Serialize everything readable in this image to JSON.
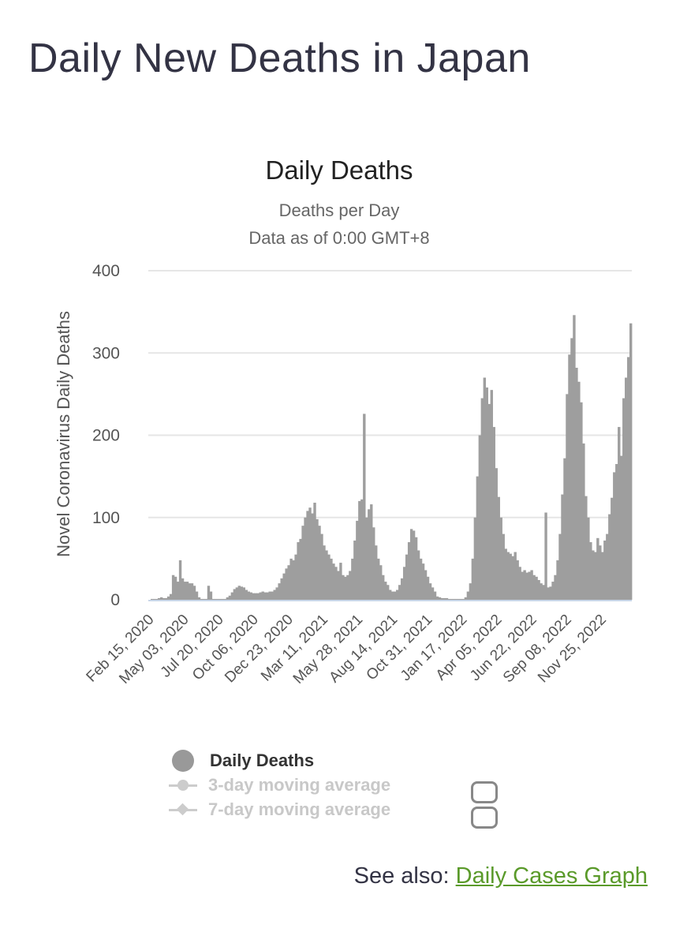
{
  "page": {
    "title": "Daily New Deaths in Japan",
    "see_also_label": "See also:",
    "see_also_link": "Daily Cases Graph"
  },
  "colors": {
    "bar": "#9e9e9e",
    "grid": "#e6e6e6",
    "axis": "#c8d6e8",
    "link": "#5a9a2a",
    "inactive_legend": "#cccccc"
  },
  "legend": [
    {
      "label": "Daily Deaths",
      "active": true,
      "marker": "circle-icon"
    },
    {
      "label": "3-day moving average",
      "active": false,
      "marker": "line-circle-icon"
    },
    {
      "label": "7-day moving average",
      "active": false,
      "marker": "line-diamond-icon"
    }
  ],
  "chart_data": {
    "type": "bar",
    "title": "Daily Deaths",
    "subtitle": [
      "Deaths per Day",
      "Data as of 0:00 GMT+8"
    ],
    "xlabel": "",
    "ylabel": "Novel Coronavirus Daily Deaths",
    "ylim": [
      0,
      400
    ],
    "yticks": [
      0,
      100,
      200,
      300,
      400
    ],
    "grid": true,
    "legend_position": "bottom",
    "x_tick_labels": [
      "Feb 15, 2020",
      "May 03, 2020",
      "Jul 20, 2020",
      "Oct 06, 2020",
      "Dec 23, 2020",
      "Mar 11, 2021",
      "May 28, 2021",
      "Aug 14, 2021",
      "Oct 31, 2021",
      "Jan 17, 2022",
      "Apr 05, 2022",
      "Jun 22, 2022",
      "Sep 08, 2022",
      "Nov 25, 2022"
    ],
    "x_start": "Feb 15, 2020",
    "x_end": "Dec 31, 2022",
    "series": [
      {
        "name": "Daily Deaths",
        "resolution": "weekly",
        "values": [
          0,
          1,
          1,
          1,
          2,
          3,
          2,
          2,
          4,
          7,
          30,
          28,
          22,
          48,
          26,
          22,
          22,
          20,
          20,
          17,
          10,
          3,
          1,
          1,
          1,
          17,
          10,
          1,
          1,
          1,
          1,
          1,
          1,
          3,
          5,
          9,
          13,
          15,
          17,
          16,
          15,
          12,
          10,
          9,
          8,
          8,
          8,
          9,
          10,
          9,
          9,
          10,
          10,
          12,
          15,
          20,
          26,
          32,
          38,
          42,
          50,
          48,
          55,
          70,
          74,
          90,
          100,
          108,
          112,
          105,
          118,
          98,
          90,
          80,
          66,
          60,
          55,
          50,
          44,
          40,
          35,
          45,
          30,
          28,
          30,
          35,
          50,
          72,
          96,
          120,
          122,
          226,
          100,
          110,
          116,
          88,
          66,
          50,
          42,
          30,
          22,
          18,
          12,
          10,
          10,
          12,
          18,
          26,
          40,
          55,
          70,
          86,
          84,
          76,
          60,
          50,
          44,
          36,
          28,
          20,
          15,
          10,
          4,
          3,
          2,
          2,
          2,
          1,
          1,
          1,
          1,
          1,
          1,
          1,
          3,
          10,
          20,
          50,
          100,
          150,
          200,
          245,
          270,
          258,
          238,
          255,
          210,
          160,
          125,
          100,
          80,
          62,
          58,
          56,
          53,
          58,
          48,
          40,
          34,
          36,
          33,
          34,
          36,
          30,
          28,
          24,
          20,
          18,
          106,
          15,
          16,
          22,
          30,
          48,
          80,
          128,
          172,
          250,
          298,
          318,
          346,
          282,
          265,
          240,
          190,
          126,
          100,
          70,
          60,
          58,
          75,
          66,
          58,
          72,
          80,
          104,
          124,
          155,
          165,
          210,
          175,
          245,
          270,
          295,
          336
        ]
      }
    ]
  }
}
